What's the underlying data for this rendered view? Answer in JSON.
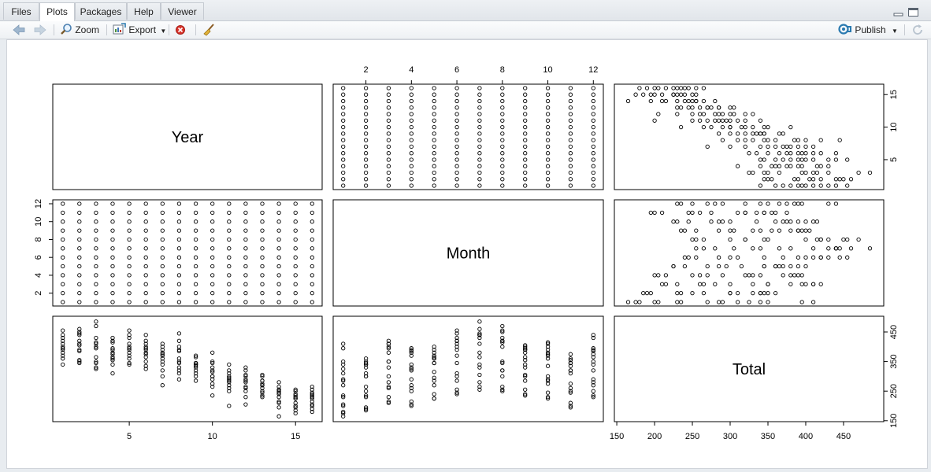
{
  "tabs": [
    {
      "label": "Files"
    },
    {
      "label": "Plots"
    },
    {
      "label": "Packages"
    },
    {
      "label": "Help"
    },
    {
      "label": "Viewer"
    }
  ],
  "toolbar": {
    "zoom_label": "Zoom",
    "export_label": "Export",
    "publish_label": "Publish"
  },
  "icons": {
    "back": "arrow-left-icon",
    "forward": "arrow-right-icon",
    "zoom": "magnifier-icon",
    "export": "export-icon",
    "remove": "remove-plot-icon",
    "clear": "broom-icon",
    "publish": "publish-icon",
    "refresh": "refresh-icon",
    "minimize": "minimize-icon",
    "maximize": "maximize-icon"
  },
  "colors": {
    "accent": "#2a7ab0",
    "remove_red": "#d9342b"
  },
  "chart_data": {
    "type": "scatter",
    "variables": [
      "Year",
      "Month",
      "Total"
    ],
    "ranges": {
      "Year": [
        1,
        16
      ],
      "Month": [
        1,
        12
      ],
      "Total": [
        160,
        490
      ]
    },
    "ticks": {
      "Year": [
        "5",
        "10",
        "15"
      ],
      "Month": [
        "2",
        "4",
        "6",
        "8",
        "10",
        "12"
      ],
      "Total": [
        "150",
        "200",
        "250",
        "300",
        "350",
        "400",
        "450"
      ],
      "Year_right": [
        "5",
        "10",
        "15"
      ],
      "Total_right": [
        "150",
        "250",
        "350",
        "450"
      ]
    },
    "points": [
      [
        1,
        1,
        395
      ],
      [
        1,
        2,
        340
      ],
      [
        1,
        3,
        410
      ],
      [
        1,
        4,
        370
      ],
      [
        1,
        5,
        380
      ],
      [
        1,
        6,
        420
      ],
      [
        1,
        7,
        440
      ],
      [
        1,
        8,
        455
      ],
      [
        1,
        9,
        390
      ],
      [
        1,
        10,
        400
      ],
      [
        1,
        11,
        360
      ],
      [
        1,
        12,
        430
      ],
      [
        2,
        1,
        350
      ],
      [
        2,
        2,
        345
      ],
      [
        2,
        3,
        420
      ],
      [
        2,
        4,
        385
      ],
      [
        2,
        5,
        390
      ],
      [
        2,
        6,
        445
      ],
      [
        2,
        7,
        460
      ],
      [
        2,
        8,
        450
      ],
      [
        2,
        9,
        405
      ],
      [
        2,
        10,
        410
      ],
      [
        2,
        11,
        355
      ],
      [
        2,
        12,
        440
      ],
      [
        3,
        1,
        410
      ],
      [
        3,
        2,
        330
      ],
      [
        3,
        3,
        395
      ],
      [
        3,
        4,
        325
      ],
      [
        3,
        5,
        400
      ],
      [
        3,
        6,
        430
      ],
      [
        3,
        7,
        485
      ],
      [
        3,
        8,
        470
      ],
      [
        3,
        9,
        365
      ],
      [
        3,
        10,
        415
      ],
      [
        3,
        11,
        345
      ],
      [
        3,
        12,
        350
      ],
      [
        4,
        1,
        310
      ],
      [
        4,
        2,
        340
      ],
      [
        4,
        3,
        380
      ],
      [
        4,
        4,
        395
      ],
      [
        4,
        5,
        360
      ],
      [
        4,
        6,
        420
      ],
      [
        4,
        7,
        430
      ],
      [
        4,
        8,
        415
      ],
      [
        4,
        9,
        355
      ],
      [
        4,
        10,
        390
      ],
      [
        4,
        11,
        375
      ],
      [
        4,
        12,
        365
      ],
      [
        5,
        1,
        340
      ],
      [
        5,
        2,
        360
      ],
      [
        5,
        3,
        410
      ],
      [
        5,
        4,
        390
      ],
      [
        5,
        5,
        370
      ],
      [
        5,
        6,
        455
      ],
      [
        5,
        7,
        440
      ],
      [
        5,
        8,
        430
      ],
      [
        5,
        9,
        400
      ],
      [
        5,
        10,
        380
      ],
      [
        5,
        11,
        345
      ],
      [
        5,
        12,
        395
      ],
      [
        6,
        1,
        325
      ],
      [
        6,
        2,
        350
      ],
      [
        6,
        3,
        400
      ],
      [
        6,
        4,
        380
      ],
      [
        6,
        5,
        365
      ],
      [
        6,
        6,
        410
      ],
      [
        6,
        7,
        440
      ],
      [
        6,
        8,
        420
      ],
      [
        6,
        9,
        395
      ],
      [
        6,
        10,
        375
      ],
      [
        6,
        11,
        335
      ],
      [
        6,
        12,
        390
      ],
      [
        7,
        1,
        270
      ],
      [
        7,
        2,
        300
      ],
      [
        7,
        3,
        350
      ],
      [
        7,
        4,
        340
      ],
      [
        7,
        5,
        360
      ],
      [
        7,
        6,
        390
      ],
      [
        7,
        7,
        410
      ],
      [
        7,
        8,
        400
      ],
      [
        7,
        9,
        380
      ],
      [
        7,
        10,
        370
      ],
      [
        7,
        11,
        320
      ],
      [
        7,
        12,
        375
      ],
      [
        8,
        1,
        290
      ],
      [
        8,
        2,
        310
      ],
      [
        8,
        3,
        350
      ],
      [
        8,
        4,
        330
      ],
      [
        8,
        5,
        345
      ],
      [
        8,
        6,
        400
      ],
      [
        8,
        7,
        445
      ],
      [
        8,
        8,
        420
      ],
      [
        8,
        9,
        390
      ],
      [
        8,
        10,
        360
      ],
      [
        8,
        11,
        320
      ],
      [
        8,
        12,
        385
      ],
      [
        9,
        1,
        285
      ],
      [
        9,
        2,
        300
      ],
      [
        9,
        3,
        330
      ],
      [
        9,
        4,
        320
      ],
      [
        9,
        5,
        345
      ],
      [
        9,
        6,
        370
      ],
      [
        9,
        7,
        365
      ],
      [
        9,
        8,
        345
      ],
      [
        9,
        9,
        340
      ],
      [
        9,
        10,
        335
      ],
      [
        9,
        11,
        310
      ],
      [
        9,
        12,
        340
      ],
      [
        10,
        1,
        235
      ],
      [
        10,
        2,
        265
      ],
      [
        10,
        3,
        300
      ],
      [
        10,
        4,
        290
      ],
      [
        10,
        5,
        315
      ],
      [
        10,
        6,
        345
      ],
      [
        10,
        7,
        380
      ],
      [
        10,
        8,
        350
      ],
      [
        10,
        9,
        330
      ],
      [
        10,
        10,
        300
      ],
      [
        10,
        11,
        275
      ],
      [
        10,
        12,
        320
      ],
      [
        11,
        1,
        200
      ],
      [
        11,
        2,
        250
      ],
      [
        11,
        3,
        280
      ],
      [
        11,
        4,
        270
      ],
      [
        11,
        5,
        295
      ],
      [
        11,
        6,
        310
      ],
      [
        11,
        7,
        340
      ],
      [
        11,
        8,
        320
      ],
      [
        11,
        9,
        300
      ],
      [
        11,
        10,
        285
      ],
      [
        11,
        11,
        260
      ],
      [
        11,
        12,
        290
      ],
      [
        12,
        1,
        205
      ],
      [
        12,
        2,
        230
      ],
      [
        12,
        3,
        265
      ],
      [
        12,
        4,
        260
      ],
      [
        12,
        5,
        285
      ],
      [
        12,
        6,
        300
      ],
      [
        12,
        7,
        330
      ],
      [
        12,
        8,
        320
      ],
      [
        12,
        9,
        305
      ],
      [
        12,
        10,
        290
      ],
      [
        12,
        11,
        250
      ],
      [
        12,
        12,
        280
      ],
      [
        13,
        1,
        230
      ],
      [
        13,
        2,
        235
      ],
      [
        13,
        3,
        260
      ],
      [
        13,
        4,
        250
      ],
      [
        13,
        5,
        270
      ],
      [
        13,
        6,
        285
      ],
      [
        13,
        7,
        305
      ],
      [
        13,
        8,
        300
      ],
      [
        13,
        9,
        285
      ],
      [
        13,
        10,
        275
      ],
      [
        13,
        11,
        245
      ],
      [
        13,
        12,
        270
      ],
      [
        14,
        1,
        165
      ],
      [
        14,
        2,
        195
      ],
      [
        14,
        3,
        230
      ],
      [
        14,
        4,
        215
      ],
      [
        14,
        5,
        240
      ],
      [
        14,
        6,
        255
      ],
      [
        14,
        7,
        280
      ],
      [
        14,
        8,
        265
      ],
      [
        14,
        9,
        255
      ],
      [
        14,
        10,
        245
      ],
      [
        14,
        11,
        210
      ],
      [
        14,
        12,
        250
      ],
      [
        15,
        1,
        175
      ],
      [
        15,
        2,
        185
      ],
      [
        15,
        3,
        210
      ],
      [
        15,
        4,
        200
      ],
      [
        15,
        5,
        225
      ],
      [
        15,
        6,
        240
      ],
      [
        15,
        7,
        255
      ],
      [
        15,
        8,
        250
      ],
      [
        15,
        9,
        235
      ],
      [
        15,
        10,
        225
      ],
      [
        15,
        11,
        195
      ],
      [
        15,
        12,
        230
      ],
      [
        16,
        1,
        180
      ],
      [
        16,
        2,
        190
      ],
      [
        16,
        3,
        215
      ],
      [
        16,
        4,
        205
      ],
      [
        16,
        5,
        225
      ],
      [
        16,
        6,
        245
      ],
      [
        16,
        7,
        265
      ],
      [
        16,
        8,
        255
      ],
      [
        16,
        9,
        240
      ],
      [
        16,
        10,
        230
      ],
      [
        16,
        11,
        200
      ],
      [
        16,
        12,
        235
      ]
    ]
  }
}
